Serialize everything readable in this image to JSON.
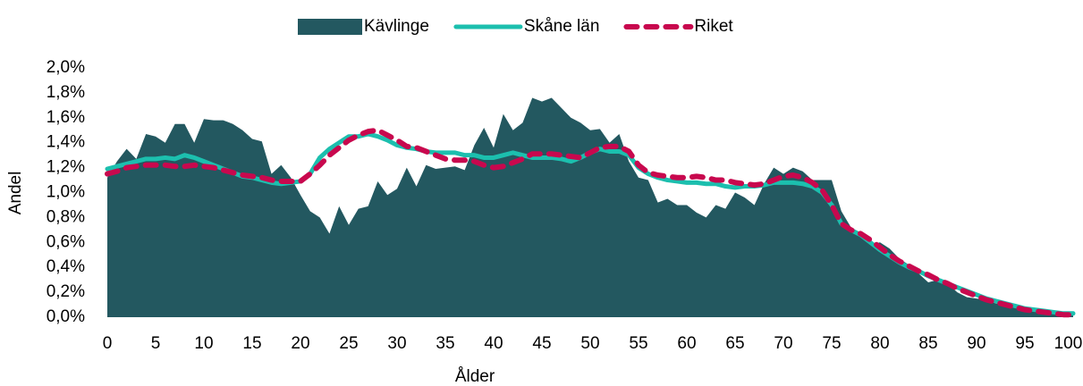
{
  "chart_data": {
    "type": "line",
    "xlabel": "Ålder",
    "ylabel": "Andel",
    "legend": "top",
    "categories": [
      "0",
      null,
      null,
      null,
      null,
      "5",
      null,
      null,
      null,
      null,
      "10",
      null,
      null,
      null,
      null,
      "15",
      null,
      null,
      null,
      null,
      "20",
      null,
      null,
      null,
      null,
      "25",
      null,
      null,
      null,
      null,
      "30",
      null,
      null,
      null,
      null,
      "35",
      null,
      null,
      null,
      null,
      "40",
      null,
      null,
      null,
      null,
      "45",
      null,
      null,
      null,
      null,
      "50",
      null,
      null,
      null,
      null,
      "55",
      null,
      null,
      null,
      null,
      "60",
      null,
      null,
      null,
      null,
      "65",
      null,
      null,
      null,
      null,
      "70",
      null,
      null,
      null,
      null,
      "75",
      null,
      null,
      null,
      null,
      "80",
      null,
      null,
      null,
      null,
      "85",
      null,
      null,
      null,
      null,
      "90",
      null,
      null,
      null,
      null,
      "95",
      null,
      null,
      null,
      null,
      "100+"
    ],
    "ylim": [
      0,
      2.0
    ],
    "yticks": [
      {
        "value": 0,
        "label": "0,0%"
      },
      {
        "value": 0.2,
        "label": "0,2%"
      },
      {
        "value": 0.4,
        "label": "0,4%"
      },
      {
        "value": 0.6,
        "label": "0,6%"
      },
      {
        "value": 0.8,
        "label": "0,8%"
      },
      {
        "value": 1.0,
        "label": "1,0%"
      },
      {
        "value": 1.2,
        "label": "1,2%"
      },
      {
        "value": 1.4,
        "label": "1,4%"
      },
      {
        "value": 1.6,
        "label": "1,6%"
      },
      {
        "value": 1.8,
        "label": "1,8%"
      },
      {
        "value": 2.0,
        "label": "2,0%"
      }
    ],
    "series": [
      {
        "name": "Kävlinge",
        "kind": "area",
        "color": "#235860",
        "values": [
          1.12,
          1.25,
          1.35,
          1.27,
          1.47,
          1.45,
          1.4,
          1.55,
          1.55,
          1.4,
          1.59,
          1.58,
          1.58,
          1.55,
          1.5,
          1.43,
          1.41,
          1.15,
          1.22,
          1.12,
          0.98,
          0.85,
          0.8,
          0.67,
          0.89,
          0.74,
          0.87,
          0.89,
          1.09,
          0.98,
          1.03,
          1.2,
          1.05,
          1.22,
          1.19,
          1.2,
          1.21,
          1.18,
          1.38,
          1.52,
          1.36,
          1.63,
          1.5,
          1.56,
          1.76,
          1.73,
          1.76,
          1.68,
          1.6,
          1.56,
          1.5,
          1.51,
          1.4,
          1.47,
          1.25,
          1.12,
          1.1,
          0.92,
          0.95,
          0.9,
          0.9,
          0.84,
          0.8,
          0.9,
          0.87,
          1.0,
          0.96,
          0.9,
          1.07,
          1.2,
          1.15,
          1.2,
          1.17,
          1.1,
          1.1,
          1.1,
          0.85,
          0.72,
          0.66,
          0.58,
          0.6,
          0.55,
          0.47,
          0.42,
          0.35,
          0.28,
          0.3,
          0.27,
          0.2,
          0.16,
          0.15,
          0.14,
          0.11,
          0.1,
          0.08,
          0.06,
          0.05,
          0.04,
          0.03,
          0.02,
          0.03
        ]
      },
      {
        "name": "Skåne län",
        "kind": "line",
        "color": "#1cbfae",
        "values": [
          1.19,
          1.21,
          1.23,
          1.25,
          1.27,
          1.27,
          1.28,
          1.27,
          1.3,
          1.28,
          1.25,
          1.22,
          1.19,
          1.16,
          1.13,
          1.12,
          1.1,
          1.08,
          1.07,
          1.08,
          1.09,
          1.15,
          1.28,
          1.35,
          1.4,
          1.45,
          1.45,
          1.47,
          1.45,
          1.42,
          1.38,
          1.36,
          1.35,
          1.33,
          1.32,
          1.32,
          1.32,
          1.3,
          1.3,
          1.28,
          1.28,
          1.3,
          1.32,
          1.3,
          1.28,
          1.28,
          1.28,
          1.27,
          1.25,
          1.28,
          1.32,
          1.35,
          1.33,
          1.33,
          1.3,
          1.2,
          1.15,
          1.12,
          1.1,
          1.09,
          1.08,
          1.08,
          1.07,
          1.07,
          1.05,
          1.04,
          1.05,
          1.05,
          1.06,
          1.08,
          1.08,
          1.08,
          1.07,
          1.05,
          1.0,
          0.9,
          0.75,
          0.7,
          0.66,
          0.6,
          0.54,
          0.49,
          0.44,
          0.4,
          0.37,
          0.33,
          0.3,
          0.27,
          0.24,
          0.21,
          0.18,
          0.15,
          0.13,
          0.11,
          0.09,
          0.07,
          0.06,
          0.05,
          0.04,
          0.03,
          0.03
        ]
      },
      {
        "name": "Riket",
        "kind": "line",
        "dashed": true,
        "color": "#c8084e",
        "values": [
          1.15,
          1.17,
          1.2,
          1.21,
          1.22,
          1.22,
          1.22,
          1.21,
          1.21,
          1.22,
          1.21,
          1.2,
          1.18,
          1.16,
          1.14,
          1.13,
          1.12,
          1.1,
          1.09,
          1.09,
          1.09,
          1.15,
          1.22,
          1.3,
          1.36,
          1.42,
          1.46,
          1.49,
          1.5,
          1.46,
          1.42,
          1.37,
          1.36,
          1.33,
          1.3,
          1.27,
          1.26,
          1.26,
          1.25,
          1.22,
          1.2,
          1.21,
          1.24,
          1.27,
          1.31,
          1.31,
          1.31,
          1.3,
          1.29,
          1.28,
          1.32,
          1.36,
          1.37,
          1.37,
          1.33,
          1.22,
          1.16,
          1.14,
          1.13,
          1.12,
          1.12,
          1.13,
          1.12,
          1.1,
          1.1,
          1.08,
          1.07,
          1.06,
          1.07,
          1.1,
          1.13,
          1.14,
          1.12,
          1.08,
          1.02,
          0.9,
          0.75,
          0.7,
          0.67,
          0.62,
          0.56,
          0.5,
          0.45,
          0.41,
          0.37,
          0.34,
          0.3,
          0.27,
          0.23,
          0.2,
          0.17,
          0.14,
          0.12,
          0.1,
          0.08,
          0.06,
          0.05,
          0.04,
          0.03,
          0.02,
          0.02
        ]
      }
    ]
  }
}
